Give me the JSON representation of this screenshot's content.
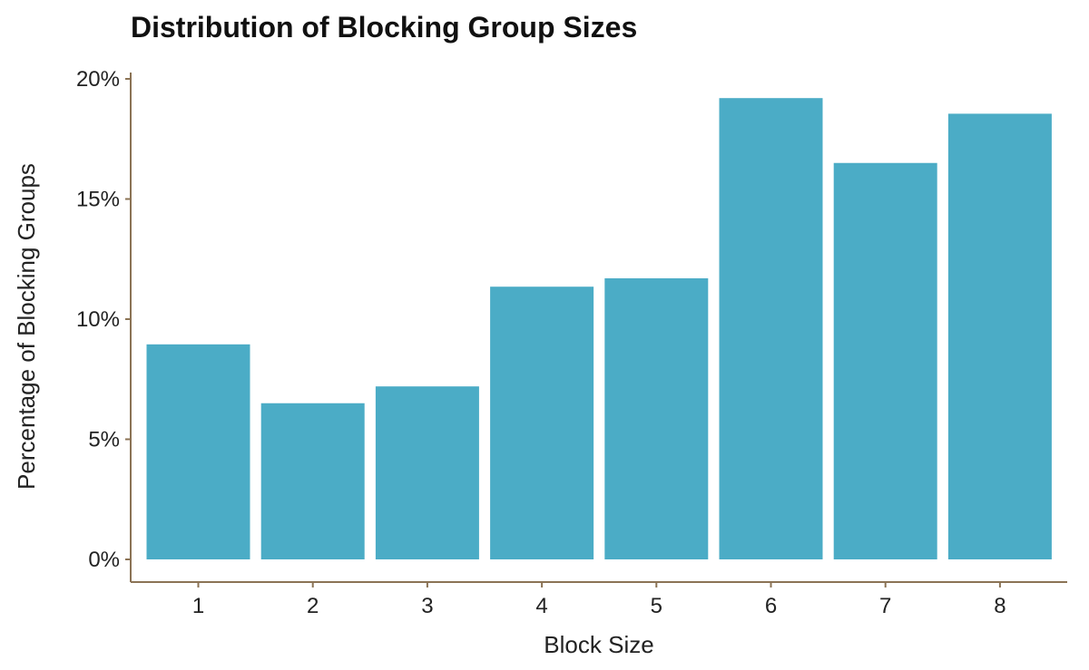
{
  "chart_data": {
    "type": "bar",
    "title": "Distribution of Blocking Group Sizes",
    "xlabel": "Block Size",
    "ylabel": "Percentage of Blocking Groups",
    "categories": [
      "1",
      "2",
      "3",
      "4",
      "5",
      "6",
      "7",
      "8"
    ],
    "values": [
      8.95,
      6.5,
      7.2,
      11.35,
      11.7,
      19.2,
      16.5,
      18.55
    ],
    "ylim": [
      0,
      20
    ],
    "yticks": [
      0,
      5,
      10,
      15,
      20
    ],
    "ytick_labels": [
      "0%",
      "5%",
      "10%",
      "15%",
      "20%"
    ],
    "grid": false,
    "legend": "none",
    "colors": {
      "bar": "#4bacc6",
      "axis": "#8b7355"
    }
  }
}
